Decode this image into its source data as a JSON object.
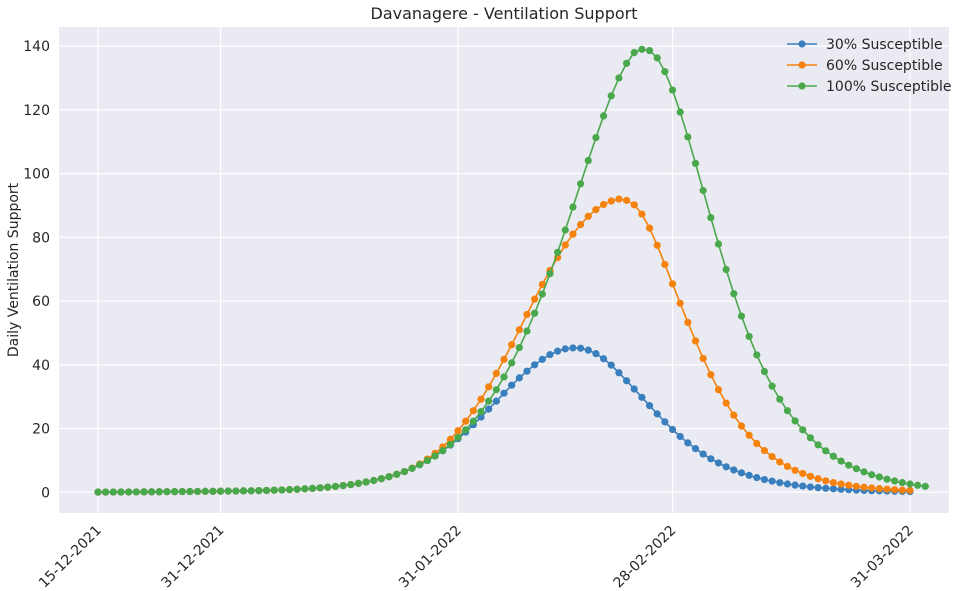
{
  "chart_data": {
    "type": "line",
    "title": "Davanagere - Ventilation Support",
    "xlabel": "",
    "ylabel": "Daily Ventilation Support",
    "x_start": "15-12-2021",
    "x_end": "31-03-2022",
    "x_ticks": [
      "15-12-2021",
      "31-12-2021",
      "31-01-2022",
      "28-02-2022",
      "31-03-2022"
    ],
    "y_ticks": [
      0,
      20,
      40,
      60,
      80,
      100,
      120,
      140
    ],
    "ylim": [
      -6.5,
      146
    ],
    "grid": true,
    "legend": "top-right",
    "series": [
      {
        "name": "30% Susceptible",
        "color": "#3a7fbd",
        "values": [
          0.05,
          0.06,
          0.07,
          0.08,
          0.09,
          0.11,
          0.12,
          0.14,
          0.16,
          0.18,
          0.2,
          0.22,
          0.24,
          0.26,
          0.28,
          0.3,
          0.33,
          0.36,
          0.39,
          0.43,
          0.47,
          0.52,
          0.58,
          0.65,
          0.73,
          0.83,
          0.94,
          1.07,
          1.22,
          1.4,
          1.6,
          1.84,
          2.11,
          2.43,
          2.8,
          3.22,
          3.7,
          4.26,
          4.9,
          5.64,
          6.5,
          7.5,
          8.64,
          9.95,
          11.4,
          13.0,
          14.8,
          16.8,
          18.9,
          21.2,
          23.6,
          26.1,
          28.6,
          31.1,
          33.6,
          35.9,
          38.0,
          40.0,
          41.7,
          43.2,
          44.3,
          45.0,
          45.3,
          45.2,
          44.6,
          43.5,
          41.9,
          39.9,
          37.5,
          35.0,
          32.4,
          29.8,
          27.2,
          24.6,
          22.1,
          19.7,
          17.5,
          15.5,
          13.7,
          12.0,
          10.5,
          9.2,
          8.0,
          7.0,
          6.1,
          5.3,
          4.6,
          4.0,
          3.5,
          3.0,
          2.6,
          2.25,
          1.95,
          1.68,
          1.45,
          1.25,
          1.08,
          0.93,
          0.8,
          0.69,
          0.59,
          0.51,
          0.44,
          0.38,
          0.33,
          0.28,
          0.24
        ]
      },
      {
        "name": "60% Susceptible",
        "color": "#f5820d",
        "values": [
          0.05,
          0.06,
          0.07,
          0.08,
          0.09,
          0.11,
          0.12,
          0.14,
          0.16,
          0.18,
          0.2,
          0.22,
          0.24,
          0.26,
          0.28,
          0.3,
          0.33,
          0.36,
          0.39,
          0.43,
          0.47,
          0.52,
          0.58,
          0.65,
          0.73,
          0.83,
          0.94,
          1.07,
          1.22,
          1.4,
          1.6,
          1.84,
          2.11,
          2.43,
          2.8,
          3.22,
          3.7,
          4.26,
          4.9,
          5.64,
          6.5,
          7.6,
          8.9,
          10.4,
          12.2,
          14.2,
          16.6,
          19.3,
          22.3,
          25.6,
          29.2,
          33.1,
          37.3,
          41.7,
          46.3,
          51.0,
          55.8,
          60.6,
          65.2,
          69.6,
          73.7,
          77.6,
          81.0,
          84.0,
          86.6,
          88.7,
          90.3,
          91.4,
          92.0,
          91.6,
          90.2,
          87.3,
          82.9,
          77.5,
          71.5,
          65.4,
          59.3,
          53.3,
          47.5,
          42.0,
          36.9,
          32.2,
          28.0,
          24.2,
          20.8,
          17.9,
          15.3,
          13.1,
          11.2,
          9.5,
          8.1,
          6.9,
          5.9,
          5.0,
          4.25,
          3.6,
          3.05,
          2.6,
          2.2,
          1.87,
          1.58,
          1.34,
          1.14,
          0.97,
          0.82,
          0.7,
          0.6
        ]
      },
      {
        "name": "100% Susceptible",
        "color": "#4aa84c",
        "values": [
          0.05,
          0.06,
          0.07,
          0.08,
          0.09,
          0.11,
          0.12,
          0.14,
          0.16,
          0.18,
          0.2,
          0.22,
          0.24,
          0.26,
          0.28,
          0.3,
          0.33,
          0.36,
          0.39,
          0.43,
          0.47,
          0.52,
          0.58,
          0.65,
          0.73,
          0.83,
          0.94,
          1.07,
          1.22,
          1.4,
          1.6,
          1.84,
          2.11,
          2.43,
          2.8,
          3.22,
          3.7,
          4.26,
          4.9,
          5.64,
          6.5,
          7.5,
          8.64,
          9.95,
          11.4,
          13.1,
          15.0,
          17.2,
          19.6,
          22.3,
          25.3,
          28.6,
          32.2,
          36.2,
          40.6,
          45.4,
          50.6,
          56.2,
          62.2,
          68.6,
          75.3,
          82.3,
          89.5,
          96.8,
          104.1,
          111.3,
          118.1,
          124.4,
          130.0,
          134.6,
          138.0,
          139.0,
          138.6,
          136.3,
          132.0,
          126.2,
          119.3,
          111.5,
          103.2,
          94.7,
          86.2,
          77.9,
          69.9,
          62.3,
          55.3,
          48.9,
          43.1,
          37.9,
          33.3,
          29.2,
          25.6,
          22.4,
          19.6,
          17.1,
          14.9,
          13.0,
          11.3,
          9.8,
          8.5,
          7.4,
          6.4,
          5.5,
          4.8,
          4.1,
          3.55,
          3.05,
          2.6,
          2.2,
          1.85
        ]
      }
    ]
  }
}
